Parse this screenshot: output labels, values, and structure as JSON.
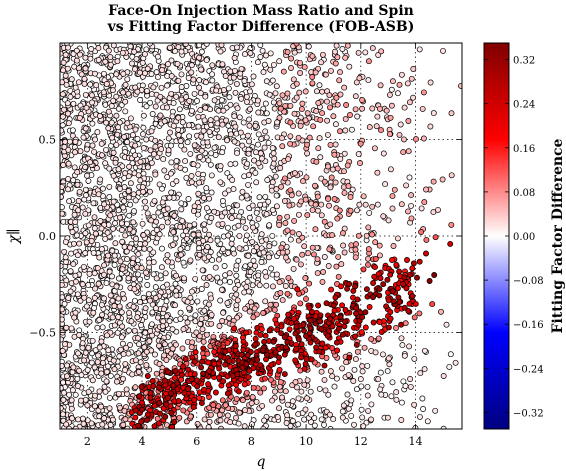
{
  "chart_data": {
    "type": "scatter",
    "title": [
      "Face-On Injection Mass Ratio and Spin",
      "vs Fitting Factor Difference (FOB-ASB)"
    ],
    "xlabel": "q",
    "ylabel": "χ∥",
    "xlim": [
      1.0,
      15.7
    ],
    "ylim": [
      -1.0,
      1.0
    ],
    "x_ticks": [
      2,
      4,
      6,
      8,
      10,
      12,
      14
    ],
    "x_tick_labels": [
      "2",
      "4",
      "6",
      "8",
      "10",
      "12",
      "14"
    ],
    "y_ticks": [
      -0.5,
      0.0,
      0.5
    ],
    "y_tick_labels": [
      "−0.5",
      "0.0",
      "0.5"
    ],
    "grid": "dotted",
    "colorbar": {
      "label": "Fitting Factor Difference",
      "colormap": "seismic",
      "range": [
        -0.35,
        0.35
      ],
      "ticks": [
        0.32,
        0.24,
        0.16,
        0.08,
        0.0,
        -0.08,
        -0.16,
        -0.24,
        -0.32
      ],
      "tick_labels": [
        "0.32",
        "0.24",
        "0.16",
        "0.08",
        "0.00",
        "−0.08",
        "−0.16",
        "−0.24",
        "−0.32"
      ],
      "colors": [
        "#ffffff",
        "#ff0000",
        "#800000",
        "#0000ff",
        "#000080"
      ]
    },
    "marker": {
      "edge_color": "#000000",
      "shape": "circle"
    },
    "point_summary": {
      "background_values": "≈0.0 (white) across the plane",
      "high_values": "0.16–0.32 (dark red) concentrated in a band from q≈4, χ≈−0.9 to q≈14, χ≈−0.25"
    }
  }
}
